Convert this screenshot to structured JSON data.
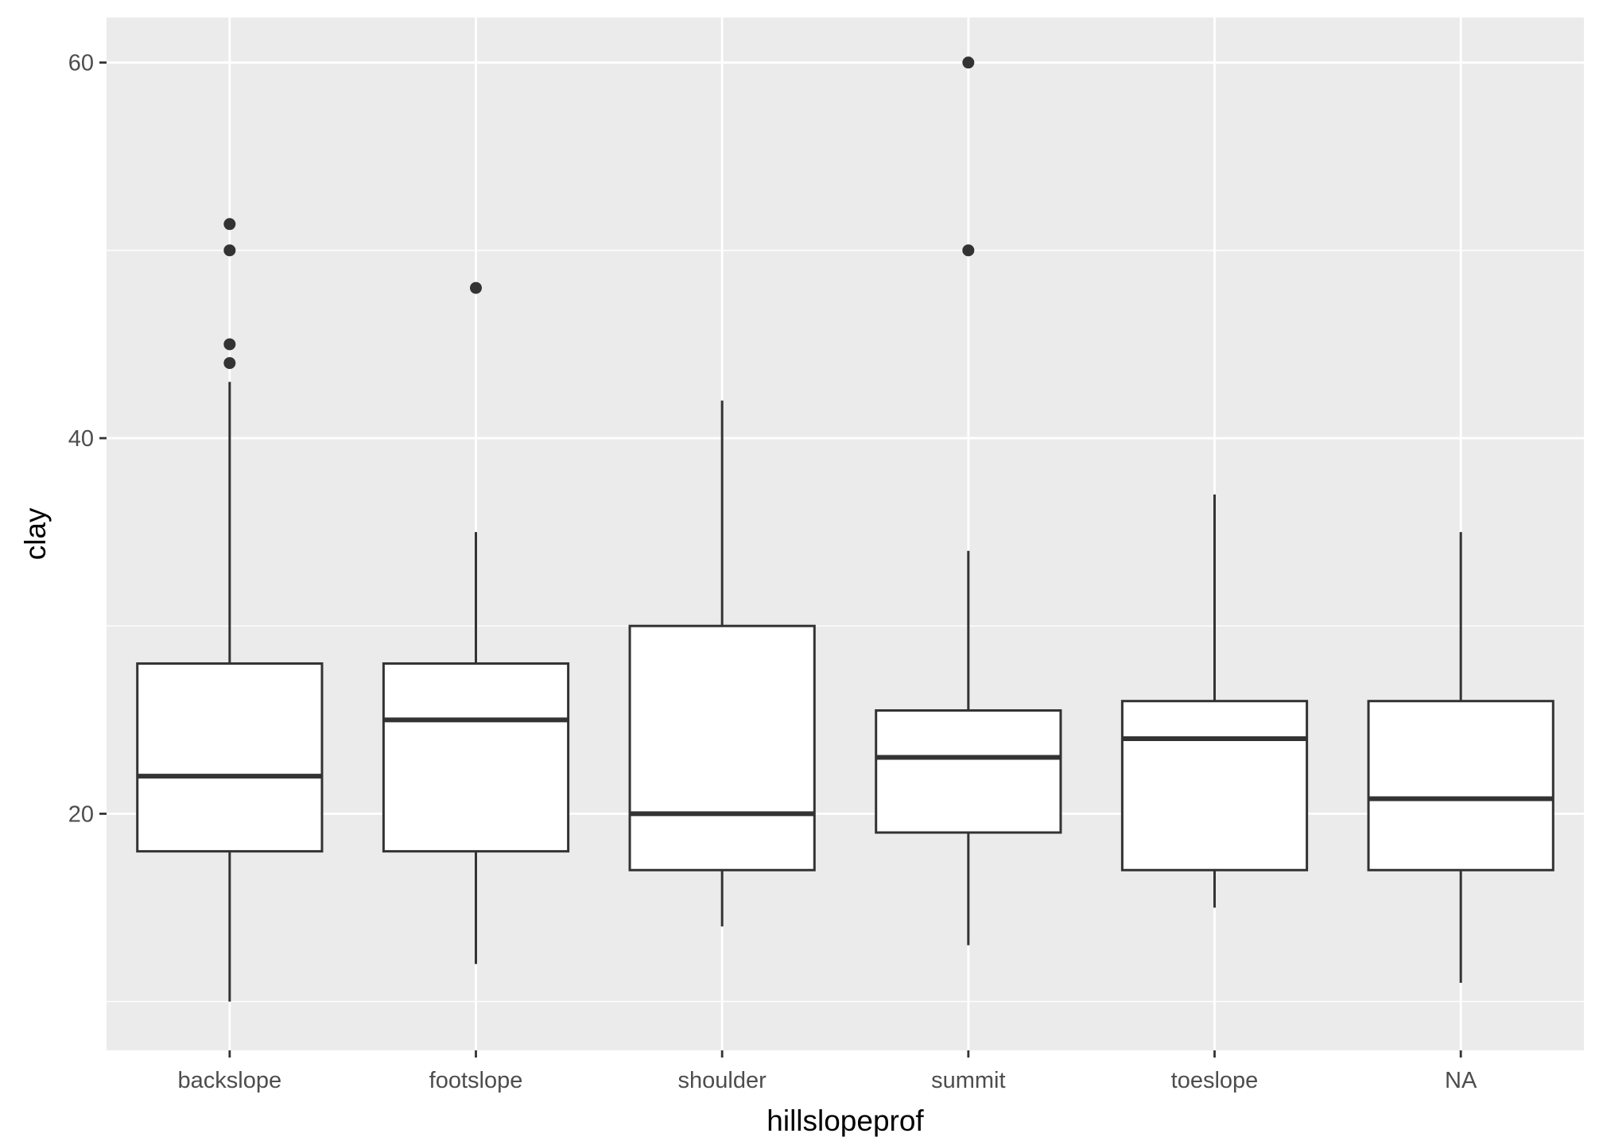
{
  "chart_data": {
    "type": "boxplot",
    "title": "",
    "xlabel": "hillslopeprof",
    "ylabel": "clay",
    "categories": [
      "backslope",
      "footslope",
      "shoulder",
      "summit",
      "toeslope",
      "NA"
    ],
    "ylim": [
      7.4,
      62.4
    ],
    "y_ticks": [
      20,
      40,
      60
    ],
    "grid": true,
    "background": "#ebebeb",
    "grid_color": "#ffffff",
    "box_line_color": "#333333",
    "box_fill": "#ffffff",
    "boxes": [
      {
        "category": "backslope",
        "lower_whisker": 10,
        "q1": 18,
        "median": 22,
        "q3": 28,
        "upper_whisker": 43,
        "outliers": [
          44,
          45,
          50,
          51.4
        ]
      },
      {
        "category": "footslope",
        "lower_whisker": 12,
        "q1": 18,
        "median": 25,
        "q3": 28,
        "upper_whisker": 35,
        "outliers": [
          48
        ]
      },
      {
        "category": "shoulder",
        "lower_whisker": 14,
        "q1": 17,
        "median": 20,
        "q3": 30,
        "upper_whisker": 42,
        "outliers": []
      },
      {
        "category": "summit",
        "lower_whisker": 13,
        "q1": 19,
        "median": 23,
        "q3": 25.5,
        "upper_whisker": 34,
        "outliers": [
          50,
          60
        ]
      },
      {
        "category": "toeslope",
        "lower_whisker": 15,
        "q1": 17,
        "median": 24,
        "q3": 26,
        "upper_whisker": 37,
        "outliers": []
      },
      {
        "category": "NA",
        "lower_whisker": 11,
        "q1": 17,
        "median": 20.8,
        "q3": 26,
        "upper_whisker": 35,
        "outliers": []
      }
    ]
  }
}
